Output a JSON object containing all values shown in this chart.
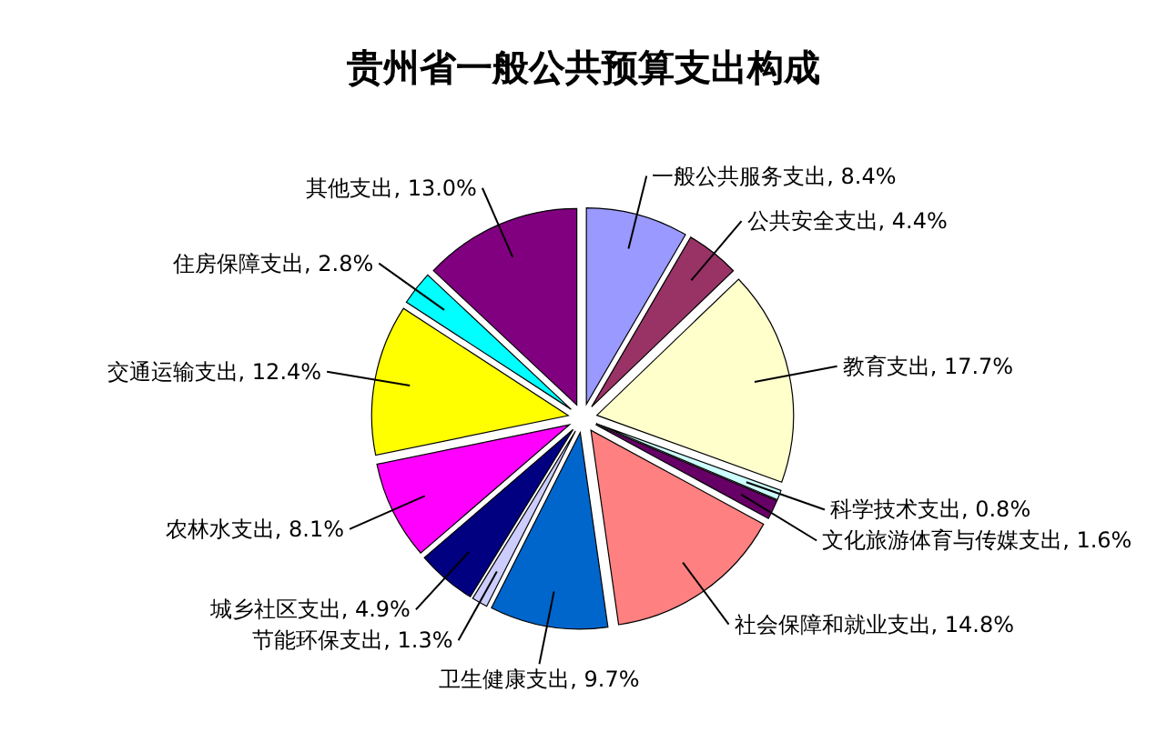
{
  "chart_data": {
    "type": "pie",
    "title": "贵州省一般公共预算支出构成",
    "categories": [
      "一般公共服务支出",
      "公共安全支出",
      "教育支出",
      "科学技术支出",
      "文化旅游体育与传媒支出",
      "社会保障和就业支出",
      "卫生健康支出",
      "节能环保支出",
      "城乡社区支出",
      "农林水支出",
      "交通运输支出",
      "住房保障支出",
      "其他支出"
    ],
    "values": [
      8.4,
      4.4,
      17.7,
      0.8,
      1.6,
      14.8,
      9.7,
      1.3,
      4.9,
      8.1,
      12.4,
      2.8,
      13.0
    ],
    "colors": [
      "#9999ff",
      "#993366",
      "#ffffcc",
      "#ccffff",
      "#660066",
      "#ff8080",
      "#0066cc",
      "#ccccff",
      "#000080",
      "#ff00ff",
      "#ffff00",
      "#00ffff",
      "#800080"
    ],
    "value_labels": [
      "8.4%",
      "4.4%",
      "17.7%",
      "0.8%",
      "1.6%",
      "14.8%",
      "9.7%",
      "1.3%",
      "4.9%",
      "8.1%",
      "12.4%",
      "2.8%",
      "13.0%"
    ]
  }
}
